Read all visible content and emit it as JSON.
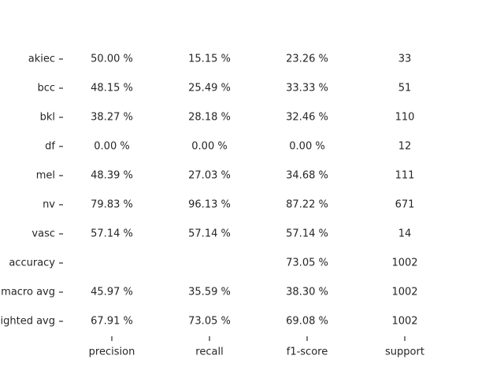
{
  "chart_data": {
    "type": "table",
    "row_labels": [
      "akiec",
      "bcc",
      "bkl",
      "df",
      "mel",
      "nv",
      "vasc",
      "accuracy",
      "macro avg",
      "weighted avg"
    ],
    "column_labels": [
      "precision",
      "recall",
      "f1-score",
      "support"
    ],
    "cells": [
      [
        "50.00 %",
        "15.15 %",
        "23.26 %",
        "33"
      ],
      [
        "48.15 %",
        "25.49 %",
        "33.33 %",
        "51"
      ],
      [
        "38.27 %",
        "28.18 %",
        "32.46 %",
        "110"
      ],
      [
        "0.00 %",
        "0.00 %",
        "0.00 %",
        "12"
      ],
      [
        "48.39 %",
        "27.03 %",
        "34.68 %",
        "111"
      ],
      [
        "79.83 %",
        "96.13 %",
        "87.22 %",
        "671"
      ],
      [
        "57.14 %",
        "57.14 %",
        "57.14 %",
        "14"
      ],
      [
        "",
        "",
        "73.05 %",
        "1002"
      ],
      [
        "45.97 %",
        "35.59 %",
        "38.30 %",
        "1002"
      ],
      [
        "67.91 %",
        "73.05 %",
        "69.08 %",
        "1002"
      ]
    ],
    "grid": false,
    "legend": "none"
  }
}
